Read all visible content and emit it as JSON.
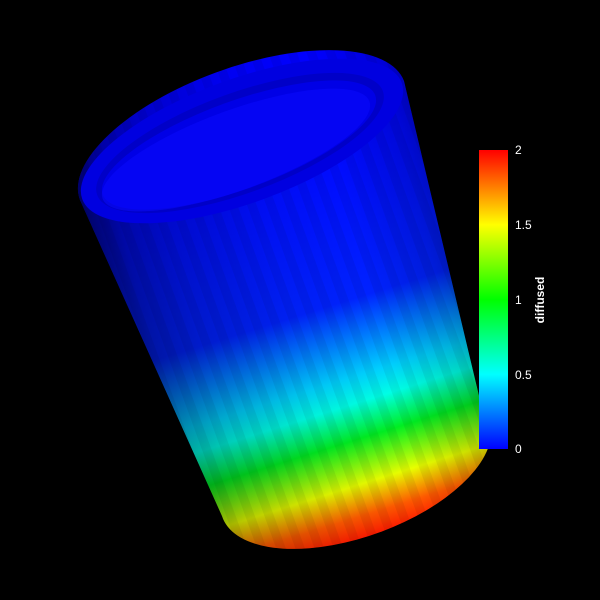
{
  "scene": {
    "background_color": "#000000",
    "object": "hollow cylinder",
    "colormap": [
      "#0000ff",
      "#00ffff",
      "#00ff00",
      "#ffff00",
      "#ff0000"
    ]
  },
  "colorbar": {
    "title": "diffused",
    "range": [
      0,
      2
    ],
    "ticks": [
      "2",
      "1.5",
      "1",
      "0.5",
      "0"
    ]
  }
}
